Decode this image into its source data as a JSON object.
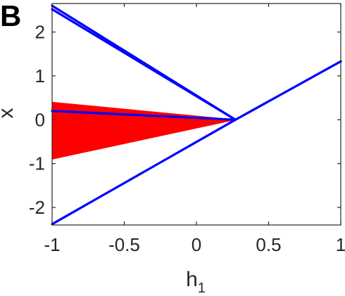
{
  "panel_label": "B",
  "chart_data": {
    "type": "line",
    "title": "",
    "xlabel": "h",
    "xlabel_subscript": "1",
    "ylabel": "x",
    "xlim": [
      -1,
      1
    ],
    "ylim": [
      -2.4,
      2.65
    ],
    "x_ticks": [
      -1,
      -0.5,
      0,
      0.5,
      1
    ],
    "x_tick_labels": [
      "-1",
      "-0.5",
      "0",
      "0.5",
      "1"
    ],
    "y_ticks": [
      -2,
      -1,
      0,
      1,
      2
    ],
    "y_tick_labels": [
      "-2",
      "-1",
      "0",
      "1",
      "2"
    ],
    "grid": false,
    "box": true,
    "colors": {
      "lines": "#0000ff",
      "region": "#ff0000",
      "axes": "#262626"
    },
    "region": {
      "type": "filled-area",
      "x": [
        -1,
        0.27
      ],
      "upper": [
        0.4,
        0
      ],
      "lower": [
        -0.9,
        0
      ]
    },
    "series": [
      {
        "x": [
          -1,
          0.27
        ],
        "y": [
          2.6,
          0
        ]
      },
      {
        "x": [
          -1,
          0.27
        ],
        "y": [
          2.52,
          0
        ]
      },
      {
        "x": [
          -1,
          0.27
        ],
        "y": [
          0.2,
          0
        ]
      },
      {
        "x": [
          -1,
          0.27,
          1
        ],
        "y": [
          -2.38,
          0,
          1.33
        ]
      }
    ]
  }
}
